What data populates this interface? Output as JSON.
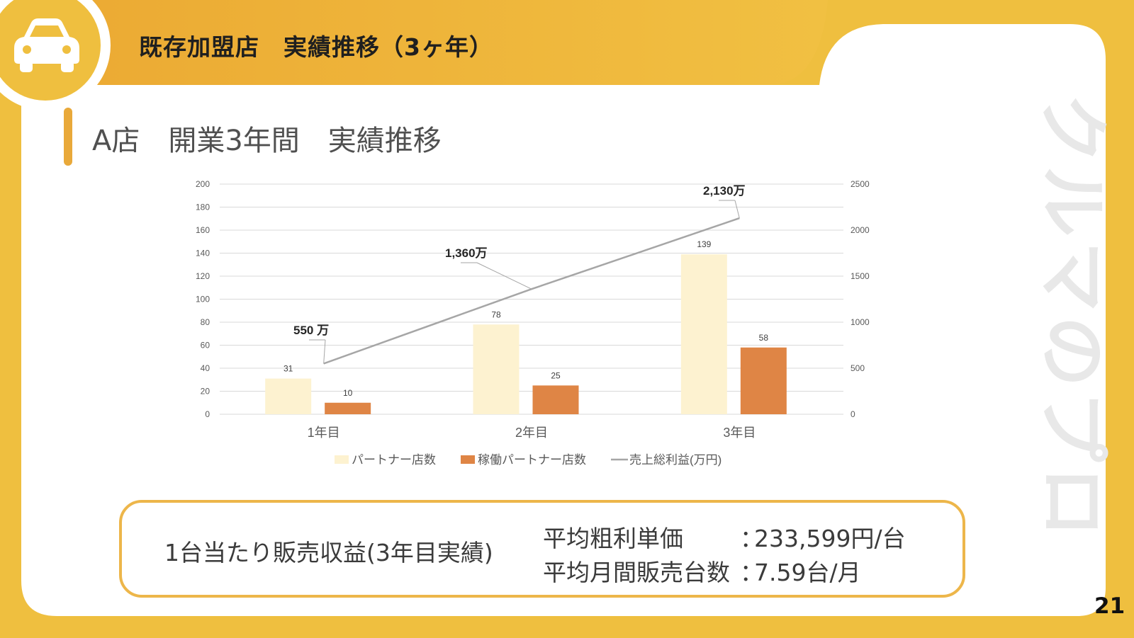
{
  "slide": {
    "title": "既存加盟店　実績推移（3ヶ年）",
    "subtitle": "A店　開業3年間　実績推移",
    "page_number": "21",
    "brand_watermark": "クルマのプロ",
    "logo_icon": "car-icon"
  },
  "summary": {
    "left_text": "1台当たり販売収益(3年目実績)",
    "rows": [
      {
        "label": "平均粗利単価",
        "colon": "：",
        "value": "233,599円/台"
      },
      {
        "label": "平均月間販売台数",
        "colon": "：",
        "value": "7.59台/月"
      }
    ]
  },
  "colors": {
    "accent": "#efbf3f",
    "partner_bar": "#fdf2d0",
    "active_bar": "#df8545",
    "profit_line": "#a6a6a6"
  },
  "chart_data": {
    "type": "bar",
    "categories": [
      "1年目",
      "2年目",
      "3年目"
    ],
    "series": [
      {
        "name": "パートナー店数",
        "type": "bar",
        "axis": "left",
        "values": [
          31,
          78,
          139
        ],
        "labels": [
          "31",
          "78",
          "139"
        ]
      },
      {
        "name": "稼働パートナー店数",
        "type": "bar",
        "axis": "left",
        "values": [
          10,
          25,
          58
        ],
        "labels": [
          "10",
          "25",
          "58"
        ]
      },
      {
        "name": "売上総利益(万円)",
        "type": "line",
        "axis": "right",
        "values": [
          550,
          1360,
          2130
        ],
        "labels": [
          "550 万",
          "1,360万",
          "2,130万"
        ]
      }
    ],
    "y_left": {
      "min": 0,
      "max": 200,
      "ticks": [
        "0",
        "20",
        "40",
        "60",
        "80",
        "100",
        "120",
        "140",
        "160",
        "180",
        "200"
      ]
    },
    "y_right": {
      "min": 0,
      "max": 2500,
      "ticks": [
        "0",
        "500",
        "1000",
        "1500",
        "2000",
        "2500"
      ]
    },
    "grid": true,
    "legend_position": "bottom"
  }
}
